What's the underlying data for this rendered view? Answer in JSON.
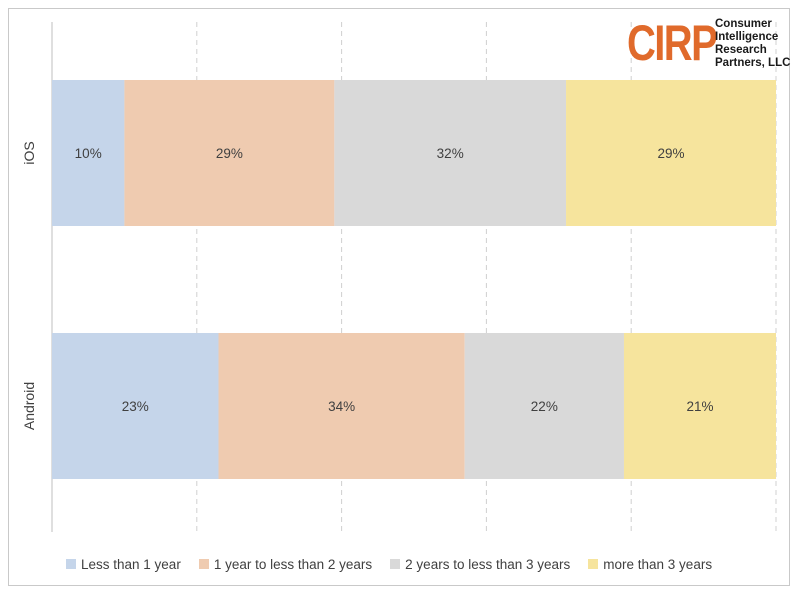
{
  "logo": {
    "mark": "CIRP",
    "lines": [
      "Consumer",
      "Intelligence",
      "Research",
      "Partners, LLC"
    ],
    "color": "#e06a2b"
  },
  "chart_data": {
    "type": "bar",
    "orientation": "horizontal",
    "stacked": true,
    "categories": [
      "iOS",
      "Android"
    ],
    "series": [
      {
        "name": "Less than 1 year",
        "values": [
          10,
          23
        ],
        "color": "#c5d5ea"
      },
      {
        "name": "1 year to less than 2 years",
        "values": [
          29,
          34
        ],
        "color": "#efcbb0"
      },
      {
        "name": "2 years to less than 3 years",
        "values": [
          32,
          22
        ],
        "color": "#d9d9d9"
      },
      {
        "name": "more than 3 years",
        "values": [
          29,
          21
        ],
        "color": "#f6e49d"
      }
    ],
    "data_labels": [
      [
        "10%",
        "23%"
      ],
      [
        "29%",
        "34%"
      ],
      [
        "32%",
        "22%"
      ],
      [
        "29%",
        "21%"
      ]
    ],
    "xlim": [
      0,
      100
    ],
    "grid": "vertical dashed",
    "legend_position": "bottom"
  }
}
